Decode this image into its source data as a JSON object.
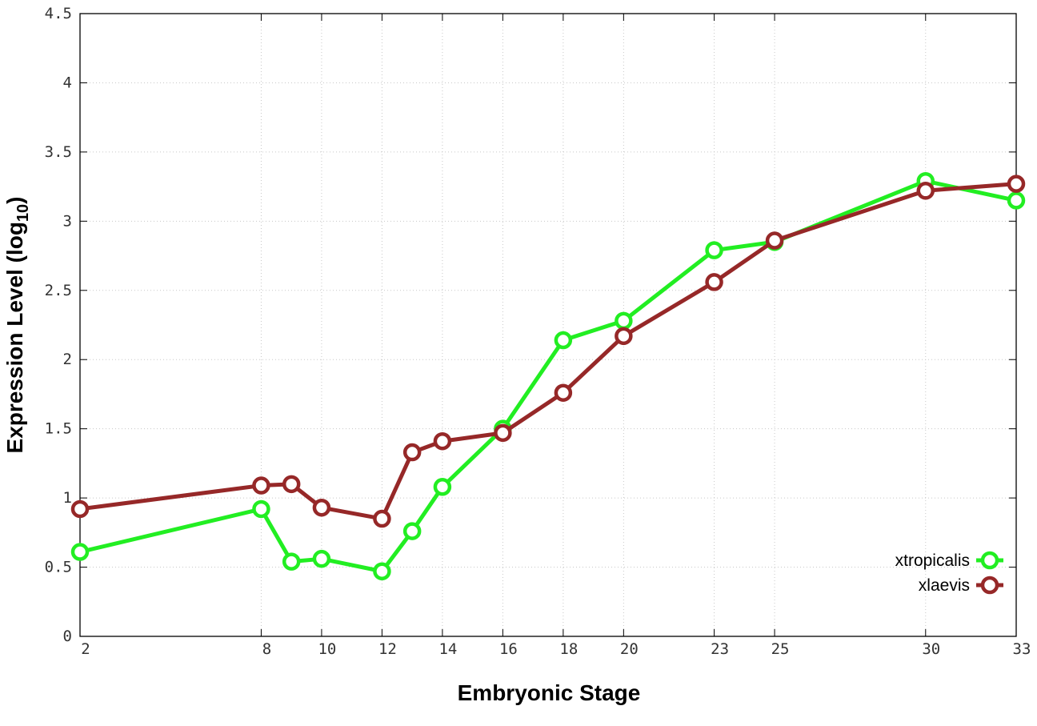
{
  "chart_data": {
    "type": "line",
    "xlabel": "Embryonic Stage",
    "ylabel_main": "Expression Level (log",
    "ylabel_sub": "10",
    "ylabel_close": ")",
    "ylim": [
      0,
      4.5
    ],
    "xlim": [
      2,
      33
    ],
    "x_ticks": [
      2,
      8,
      10,
      12,
      14,
      16,
      18,
      20,
      23,
      25,
      30,
      33
    ],
    "y_ticks": [
      "0",
      "0.5",
      "1",
      "1.5",
      "2",
      "2.5",
      "3",
      "3.5",
      "4",
      "4.5"
    ],
    "grid": true,
    "legend_position": "bottom-right",
    "series": [
      {
        "name": "xtropicalis",
        "color": "#22ee22",
        "x": [
          2,
          8,
          9,
          10,
          12,
          13,
          14,
          16,
          18,
          20,
          23,
          25,
          30,
          33
        ],
        "values": [
          0.61,
          0.92,
          0.54,
          0.56,
          0.47,
          0.76,
          1.08,
          1.5,
          2.14,
          2.28,
          2.79,
          2.85,
          3.29,
          3.15
        ]
      },
      {
        "name": "xlaevis",
        "color": "#962828",
        "x": [
          2,
          8,
          9,
          10,
          12,
          13,
          14,
          16,
          18,
          20,
          23,
          25,
          30,
          33
        ],
        "values": [
          0.92,
          1.09,
          1.1,
          0.93,
          0.85,
          1.33,
          1.41,
          1.47,
          1.76,
          2.17,
          2.56,
          2.86,
          3.22,
          3.27
        ]
      }
    ]
  }
}
